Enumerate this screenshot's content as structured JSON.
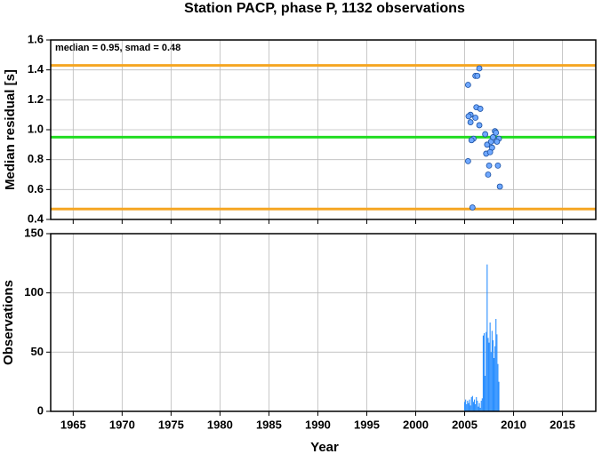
{
  "chart_data": [
    {
      "type": "scatter",
      "title": "Station PACP, phase P, 1132 observations",
      "ylabel": "Median residual [s]",
      "annotation": "median = 0.95, smad = 0.48",
      "x": [
        2005.35,
        2006.1,
        2006.3,
        2006.5,
        2005.6,
        2005.4,
        2005.6,
        2006.2,
        2006.6,
        2006.1,
        2006.5,
        2005.9,
        2005.7,
        2005.35,
        2007.1,
        2007.3,
        2007.7,
        2007.9,
        2008.1,
        2008.2,
        2008.5,
        2008.3,
        2007.8,
        2007.2,
        2007.6,
        2007.5,
        2008.4,
        2007.4,
        2008.6,
        2005.8
      ],
      "values": [
        1.3,
        1.36,
        1.36,
        1.41,
        1.1,
        1.09,
        1.05,
        1.15,
        1.14,
        1.08,
        1.03,
        0.94,
        0.93,
        0.79,
        0.97,
        0.9,
        0.92,
        0.95,
        0.99,
        0.98,
        0.94,
        0.92,
        0.88,
        0.84,
        0.85,
        0.76,
        0.76,
        0.7,
        0.62,
        0.48
      ],
      "color": "#6fa8ff",
      "hlines": [
        {
          "value": 1.43,
          "color": "#f5a623"
        },
        {
          "value": 0.95,
          "color": "#22dd22"
        },
        {
          "value": 0.47,
          "color": "#f5a623"
        }
      ],
      "xlim": [
        1962.7,
        2018.4
      ],
      "xticks": [
        1965,
        1970,
        1975,
        1980,
        1985,
        1990,
        1995,
        2000,
        2005,
        2010,
        2015
      ],
      "ylim": [
        0.4,
        1.6
      ],
      "yticks": [
        0.4,
        0.6,
        0.8,
        {
          "value": 1.0,
          "label": "1.0"
        },
        1.2,
        1.4,
        1.6
      ],
      "grid": true
    },
    {
      "type": "bar",
      "xlabel": "Year",
      "ylabel": "Observations",
      "x": [
        2005.0,
        2005.1,
        2005.2,
        2005.3,
        2005.4,
        2005.5,
        2005.6,
        2005.7,
        2005.8,
        2005.9,
        2006.0,
        2006.1,
        2006.2,
        2006.3,
        2006.4,
        2006.5,
        2006.6,
        2006.7,
        2006.8,
        2006.9,
        2007.0,
        2007.1,
        2007.2,
        2007.3,
        2007.4,
        2007.5,
        2007.6,
        2007.7,
        2007.8,
        2007.9,
        2008.0,
        2008.1,
        2008.2,
        2008.3,
        2008.4,
        2008.5
      ],
      "values": [
        8,
        10,
        6,
        9,
        7,
        10,
        5,
        12,
        13,
        8,
        10,
        6,
        12,
        9,
        4,
        7,
        3,
        9,
        11,
        64,
        66,
        30,
        67,
        124,
        62,
        58,
        75,
        50,
        68,
        60,
        45,
        55,
        78,
        65,
        40,
        25
      ],
      "color": "#2b8fff",
      "xlim": [
        1962.7,
        2018.4
      ],
      "xticks": [
        1965,
        1970,
        1975,
        1980,
        1985,
        1990,
        1995,
        2000,
        2005,
        2010,
        2015
      ],
      "ylim": [
        0,
        150
      ],
      "yticks": [
        0,
        50,
        100,
        150
      ],
      "grid": true
    }
  ]
}
